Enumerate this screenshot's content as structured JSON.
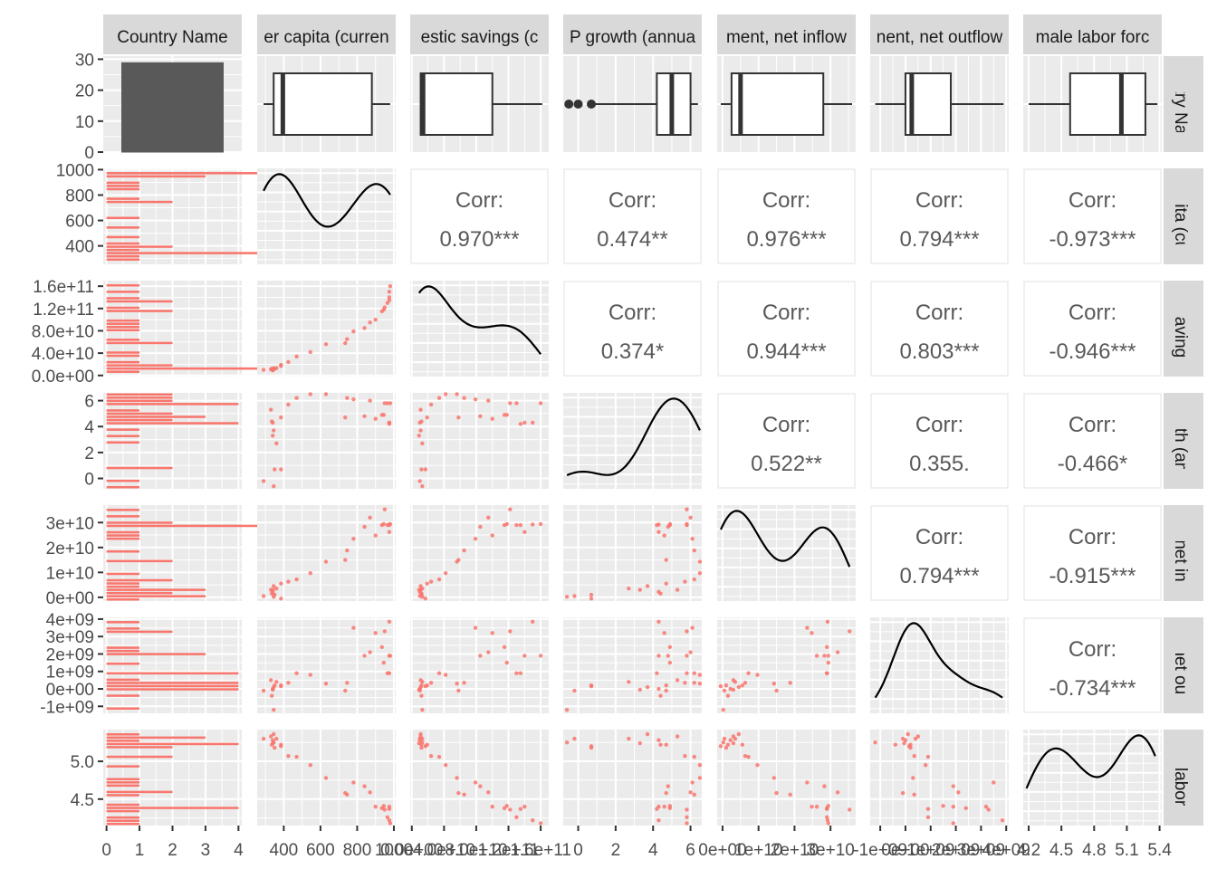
{
  "chart_data": {
    "type": "scatter-matrix",
    "title": "",
    "variables": [
      {
        "key": "country",
        "label": "Country Name",
        "kind": "factor"
      },
      {
        "key": "gdppc",
        "label": "GDP per capita (current US$)",
        "kind": "numeric"
      },
      {
        "key": "savings",
        "label": "Gross domestic savings (current US$)",
        "kind": "numeric"
      },
      {
        "key": "growth",
        "label": "GDP growth (annual %)",
        "kind": "numeric"
      },
      {
        "key": "fdi_in",
        "label": "Foreign direct investment, net inflows",
        "kind": "numeric"
      },
      {
        "key": "fdi_out",
        "label": "Foreign direct investment, net outflows",
        "kind": "numeric"
      },
      {
        "key": "fem",
        "label": "Female labor force",
        "kind": "numeric"
      }
    ],
    "strip_labels_top": [
      "Country Name",
      "er capita (curren",
      "estic savings (c",
      "P growth (annua",
      "ment, net inflow",
      "nent, net outflow",
      "male labor forc"
    ],
    "strip_labels_right": [
      "ountry Nam",
      "capita (cur",
      "ic savings",
      "rowth (ann",
      "nt, net infl",
      "nt, net outfl",
      "ale labor f"
    ],
    "axes": {
      "country": {
        "range": [
          0,
          31
        ],
        "ticks": [
          0,
          10,
          20,
          30
        ],
        "tick_labels": [
          "0",
          "10",
          "20",
          "30"
        ]
      },
      "gdppc": {
        "range": [
          255,
          1010
        ],
        "ticks": [
          400,
          600,
          800,
          1000
        ],
        "tick_labels": [
          "400",
          "600",
          "800",
          "1000"
        ]
      },
      "savings": {
        "range": [
          -2000000000.0,
          170000000000.0
        ],
        "ticks": [
          0,
          40000000000.0,
          80000000000.0,
          120000000000.0,
          160000000000.0
        ],
        "tick_labels": [
          "0.0e+00",
          "4.0e+10",
          "8.0e+10",
          "1.2e+11",
          "1.6e+11"
        ]
      },
      "growth": {
        "range": [
          -0.8,
          6.6
        ],
        "ticks": [
          0,
          2,
          4,
          6
        ],
        "tick_labels": [
          "0",
          "2",
          "4",
          "6"
        ]
      },
      "fdi_in": {
        "range": [
          -1500000000.0,
          37000000000.0
        ],
        "ticks": [
          0,
          10000000000.0,
          20000000000.0,
          30000000000.0
        ],
        "tick_labels": [
          "0e+00",
          "1e+10",
          "2e+10",
          "3e+10"
        ]
      },
      "fdi_out": {
        "range": [
          -1400000000.0,
          4100000000.0
        ],
        "ticks": [
          -1000000000.0,
          0,
          1000000000.0,
          2000000000.0,
          3000000000.0,
          4000000000.0
        ],
        "tick_labels": [
          "-1e+09",
          "0e+00",
          "1e+09",
          "2e+09",
          "3e+09",
          "4e+09"
        ]
      },
      "fem": {
        "range": [
          4.15,
          5.42
        ],
        "ticks": [
          4.2,
          4.5,
          4.8,
          5.1,
          5.4
        ],
        "tick_labels": [
          "4.2",
          "4.5",
          "4.8",
          "5.1",
          "5.4"
        ],
        "y_ticks": [
          4.5,
          5.0
        ],
        "y_tick_labels": [
          "4.5",
          "5.0"
        ]
      }
    },
    "count_axis": {
      "range": [
        -0.1,
        4.1
      ],
      "ticks": [
        0,
        1,
        2,
        3,
        4
      ],
      "tick_labels": [
        "0",
        "1",
        "2",
        "3",
        "4"
      ]
    },
    "country_bar": {
      "count": 29,
      "label": "Country Name"
    },
    "correlations": [
      {
        "row": "savings",
        "col": "gdppc",
        "label": "Corr:",
        "value": "0.970***"
      },
      {
        "row": "growth",
        "col": "gdppc",
        "label": "Corr:",
        "value": "0.474**"
      },
      {
        "row": "fdi_in",
        "col": "gdppc",
        "label": "Corr:",
        "value": "0.976***"
      },
      {
        "row": "fdi_out",
        "col": "gdppc",
        "label": "Corr:",
        "value": "0.794***"
      },
      {
        "row": "fem",
        "col": "gdppc",
        "label": "Corr:",
        "value": "-0.973***"
      },
      {
        "row": "growth",
        "col": "savings",
        "label": "Corr:",
        "value": "0.374*"
      },
      {
        "row": "fdi_in",
        "col": "savings",
        "label": "Corr:",
        "value": "0.944***"
      },
      {
        "row": "fdi_out",
        "col": "savings",
        "label": "Corr:",
        "value": "0.803***"
      },
      {
        "row": "fem",
        "col": "savings",
        "label": "Corr:",
        "value": "-0.946***"
      },
      {
        "row": "fdi_in",
        "col": "growth",
        "label": "Corr:",
        "value": "0.522**"
      },
      {
        "row": "fdi_out",
        "col": "growth",
        "label": "Corr:",
        "value": "0.355."
      },
      {
        "row": "fem",
        "col": "growth",
        "label": "Corr:",
        "value": "-0.466*"
      },
      {
        "row": "fdi_out",
        "col": "fdi_in",
        "label": "Corr:",
        "value": "0.794***"
      },
      {
        "row": "fem",
        "col": "fdi_in",
        "label": "Corr:",
        "value": "-0.915***"
      },
      {
        "row": "fem",
        "col": "fdi_out",
        "label": "Corr:",
        "value": "-0.734***"
      }
    ],
    "boxplots": {
      "gdppc": {
        "lower_whisker": 290,
        "q1": 345,
        "median": 395,
        "q3": 880,
        "upper_whisker": 980,
        "outliers": []
      },
      "savings": {
        "lower_whisker": 10000000000.0,
        "q1": 11000000000.0,
        "median": 14000000000.0,
        "q3": 100000000000.0,
        "upper_whisker": 162000000000.0,
        "outliers": []
      },
      "growth": {
        "lower_whisker": 0.7,
        "q1": 4.2,
        "median": 5.0,
        "q3": 6.0,
        "upper_whisker": 6.4,
        "outliers": [
          -0.5,
          0.0,
          0.7
        ]
      },
      "fdi_in": {
        "lower_whisker": -500000000.0,
        "q1": 2500000000.0,
        "median": 5000000000.0,
        "q3": 28000000000.0,
        "upper_whisker": 36000000000.0,
        "outliers": []
      },
      "fdi_out": {
        "lower_whisker": -1200000000.0,
        "q1": 0.0,
        "median": 250000000.0,
        "q3": 1800000000.0,
        "upper_whisker": 3900000000.0,
        "outliers": []
      },
      "fem": {
        "lower_whisker": 4.2,
        "q1": 4.58,
        "median": 5.05,
        "q3": 5.27,
        "upper_whisker": 5.38,
        "outliers": []
      }
    },
    "observations": {
      "gdppc": [
        290,
        330,
        335,
        340,
        345,
        340,
        350,
        345,
        360,
        385,
        385,
        425,
        470,
        545,
        630,
        735,
        745,
        780,
        840,
        870,
        900,
        935,
        945,
        950,
        965,
        975,
        975,
        980,
        975
      ],
      "savings": [
        10000000000.0,
        11000000000.0,
        12000000000.0,
        10000000000.0,
        11000000000.0,
        9000000000.0,
        12000000000.0,
        13000000000.0,
        13000000000.0,
        17000000000.0,
        19000000000.0,
        24000000000.0,
        34000000000.0,
        42000000000.0,
        56000000000.0,
        58000000000.0,
        65000000000.0,
        79000000000.0,
        85000000000.0,
        95000000000.0,
        100000000000.0,
        115000000000.0,
        118000000000.0,
        122000000000.0,
        130000000000.0,
        140000000000.0,
        150000000000.0,
        160000000000.0,
        135000000000.0
      ],
      "growth": [
        -0.2,
        5.3,
        4.4,
        4.3,
        3.7,
        3.3,
        0.7,
        -0.6,
        2.7,
        0.7,
        4.7,
        5.7,
        6.2,
        6.5,
        6.5,
        4.7,
        6.2,
        6.1,
        4.8,
        6.0,
        4.6,
        4.9,
        4.9,
        5.8,
        5.8,
        4.3,
        4.3,
        5.8,
        4.2
      ],
      "fdi_in": [
        500000000.0,
        3000000000.0,
        1500000000.0,
        2200000000.0,
        4500000000.0,
        3000000000.0,
        1000000000.0,
        200000000.0,
        3500000000.0,
        -500000000.0,
        5500000000.0,
        6300000000.0,
        7200000000.0,
        9700000000.0,
        14300000000.0,
        15000000000.0,
        18800000000.0,
        23500000000.0,
        28300000000.0,
        32000000000.0,
        24800000000.0,
        29000000000.0,
        29400000000.0,
        35300000000.0,
        29000000000.0,
        26200000000.0,
        29200000000.0,
        29400000000.0,
        29000000000.0
      ],
      "fdi_out": [
        -100000000.0,
        500000000.0,
        -400000000.0,
        0.0,
        100000000.0,
        -50000000.0,
        200000000.0,
        -1200000000.0,
        400000000.0,
        150000000.0,
        200000000.0,
        350000000.0,
        900000000.0,
        800000000.0,
        300000000.0,
        -100000000.0,
        350000000.0,
        3500000000.0,
        1900000000.0,
        2100000000.0,
        3200000000.0,
        2400000000.0,
        1500000000.0,
        3300000000.0,
        900000000.0,
        1900000000.0,
        3850000000.0,
        1900000000.0,
        900000000.0
      ],
      "fem": [
        5.3,
        5.33,
        5.22,
        5.28,
        5.36,
        5.24,
        5.18,
        5.25,
        5.3,
        5.2,
        5.22,
        5.07,
        5.06,
        4.95,
        4.78,
        4.58,
        4.56,
        4.72,
        4.67,
        4.59,
        4.4,
        4.38,
        4.41,
        4.36,
        4.26,
        4.4,
        4.22,
        4.18,
        4.37
      ]
    },
    "legend": "none",
    "grid": true,
    "colors": {
      "points": "#F8766D",
      "bars": "#F8766D",
      "panel_bg": "#EBEBEB",
      "strip_bg": "#D9D9D9",
      "grid_major": "#FFFFFF",
      "line": "#000000",
      "box_fill": "#FFFFFF",
      "box_line": "#333333",
      "country_bar": "#595959",
      "corr_text": "#595959"
    }
  }
}
